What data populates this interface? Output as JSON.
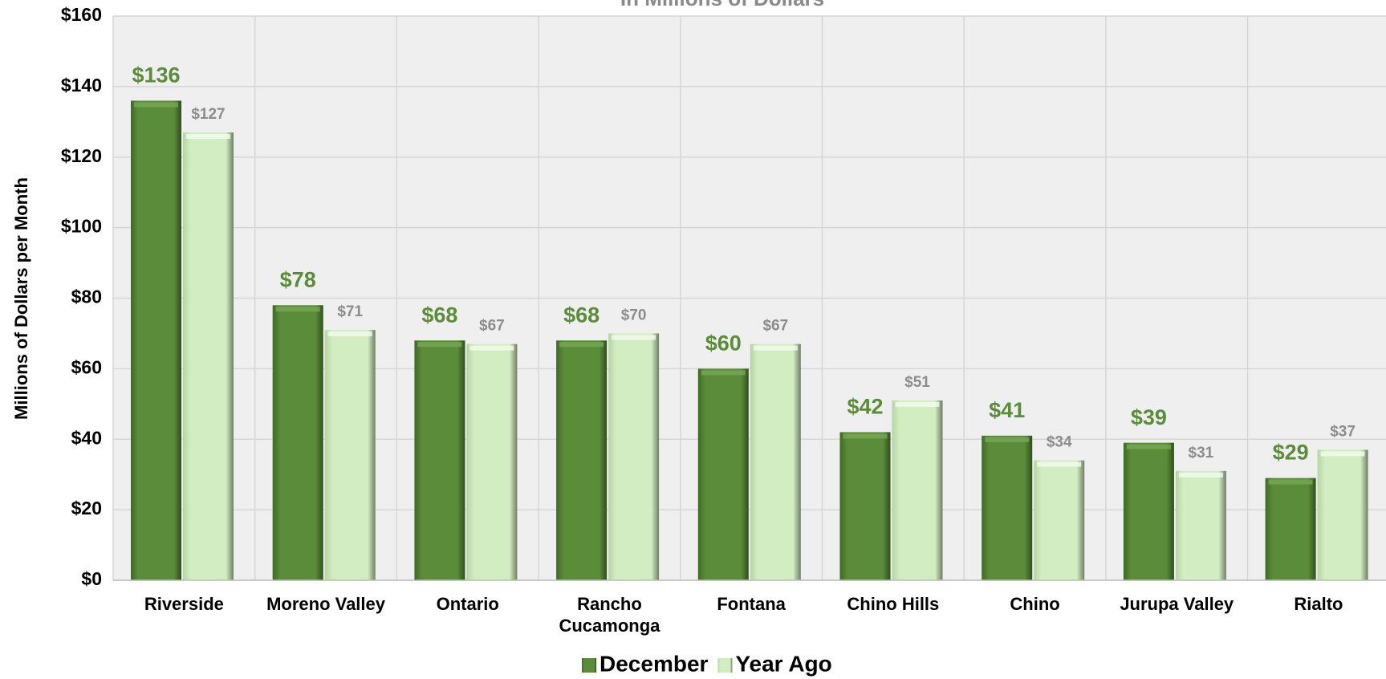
{
  "chart_data": {
    "type": "bar",
    "subtitle": "In Millions of Dollars",
    "ylabel": "Millions of Dollars per Month",
    "categories": [
      "Riverside",
      "Moreno Valley",
      "Ontario",
      "Rancho Cucamonga",
      "Fontana",
      "Chino Hills",
      "Chino",
      "Jurupa Valley",
      "Rialto"
    ],
    "series": [
      {
        "name": "December",
        "color": "#5b8c3a",
        "values": [
          136,
          78,
          68,
          68,
          60,
          42,
          41,
          39,
          29
        ],
        "value_labels": [
          "$136",
          "$78",
          "$68",
          "$68",
          "$60",
          "$42",
          "$41",
          "$39",
          "$29"
        ]
      },
      {
        "name": "Year Ago",
        "color": "#d2edc2",
        "values": [
          127,
          71,
          67,
          70,
          67,
          51,
          34,
          31,
          37
        ],
        "value_labels": [
          "$127",
          "$71",
          "$67",
          "$70",
          "$67",
          "$51",
          "$34",
          "$31",
          "$37"
        ]
      }
    ],
    "ylim": [
      0,
      160
    ],
    "yticks": [
      {
        "value": 0,
        "label": "$0"
      },
      {
        "value": 20,
        "label": "$20"
      },
      {
        "value": 40,
        "label": "$40"
      },
      {
        "value": 60,
        "label": "$60"
      },
      {
        "value": 80,
        "label": "$80"
      },
      {
        "value": 100,
        "label": "$100"
      },
      {
        "value": 120,
        "label": "$120"
      },
      {
        "value": 140,
        "label": "$140"
      },
      {
        "value": 160,
        "label": "$160"
      }
    ],
    "grid": true,
    "legend": "bottom"
  }
}
